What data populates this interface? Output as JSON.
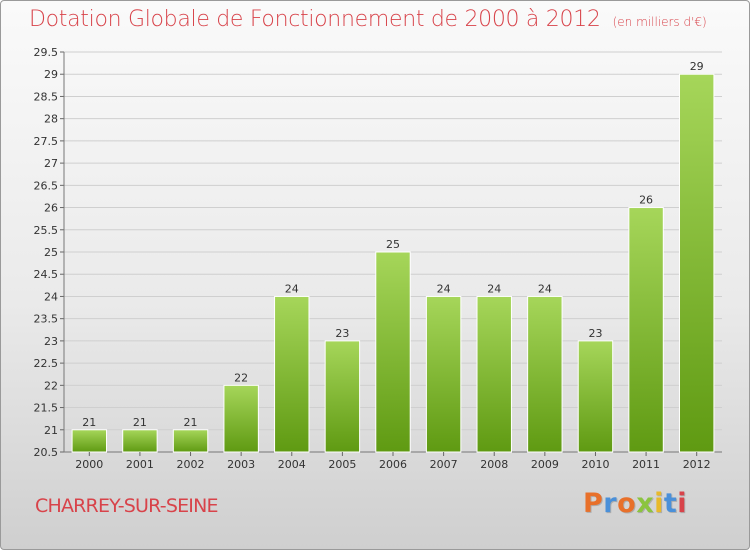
{
  "header": {
    "title": "Dotation Globale de Fonctionnement de 2000 à 2012",
    "subtitle": "(en milliers d'€)"
  },
  "footer": {
    "commune": "CHARREY-SUR-SEINE",
    "logo_text": "Proxiti",
    "logo_letter_colors": [
      "#e8702a",
      "#4a90d9",
      "#e8702a",
      "#8bc43f",
      "#e8b92a",
      "#4a90d9",
      "#d8434a"
    ]
  },
  "colors": {
    "title": "#d8434a",
    "bar_light": "#a6d65a",
    "bar_dark": "#5f9a12",
    "grid": "#cfcfcf",
    "axis_text": "#333333"
  },
  "chart_data": {
    "type": "bar",
    "categories": [
      "2000",
      "2001",
      "2002",
      "2003",
      "2004",
      "2005",
      "2006",
      "2007",
      "2008",
      "2009",
      "2010",
      "2011",
      "2012"
    ],
    "values": [
      21,
      21,
      21,
      22,
      24,
      23,
      25,
      24,
      24,
      24,
      23,
      26,
      29
    ],
    "ylim": [
      20.5,
      29.5
    ],
    "yticks": [
      "20.5",
      "21",
      "21.5",
      "22",
      "22.5",
      "23",
      "23.5",
      "24",
      "24.5",
      "25",
      "25.5",
      "26",
      "26.5",
      "27",
      "27.5",
      "28",
      "28.5",
      "29",
      "29.5"
    ],
    "grid": true,
    "data_labels": true
  }
}
